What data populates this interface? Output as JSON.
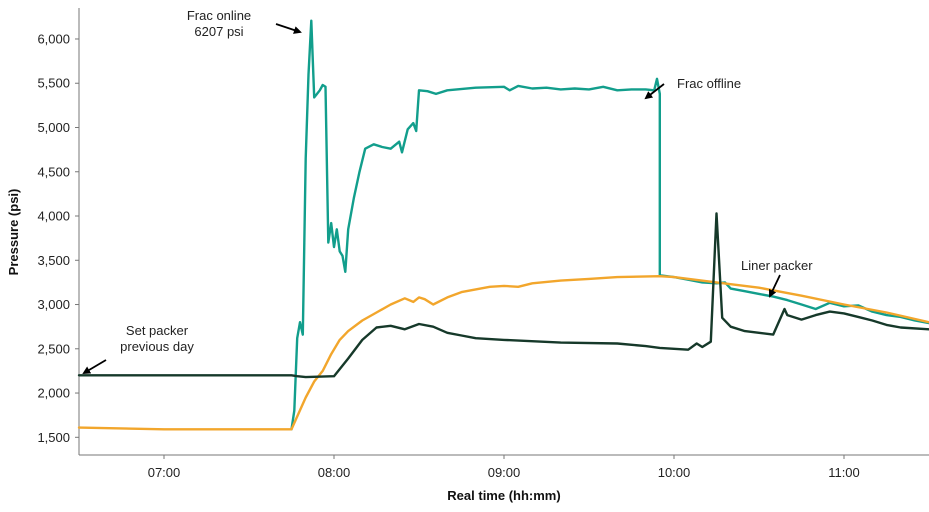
{
  "chart_data": {
    "type": "line",
    "title": "",
    "xlabel": "Real time (hh:mm)",
    "ylabel": "Pressure (psi)",
    "x_ticks": [
      "07:00",
      "08:00",
      "09:00",
      "10:00",
      "11:00"
    ],
    "y_ticks": [
      "1,500",
      "2,000",
      "2,500",
      "3,000",
      "3,500",
      "4,000",
      "4,500",
      "5,000",
      "5,500",
      "6,000"
    ],
    "xlim": [
      "06:30",
      "11:30"
    ],
    "ylim": [
      1300,
      6350
    ],
    "grid": false,
    "legend": "none",
    "series": [
      {
        "color": "#129e8c",
        "points": [
          [
            "07:45",
            1590
          ],
          [
            "07:46",
            1800
          ],
          [
            "07:47",
            2620
          ],
          [
            "07:48",
            2800
          ],
          [
            "07:49",
            2660
          ],
          [
            "07:50",
            4650
          ],
          [
            "07:51",
            5600
          ],
          [
            "07:52",
            6207
          ],
          [
            "07:53",
            5340
          ],
          [
            "07:54",
            5380
          ],
          [
            "07:55",
            5420
          ],
          [
            "07:56",
            5480
          ],
          [
            "07:57",
            5460
          ],
          [
            "07:58",
            3700
          ],
          [
            "07:59",
            3920
          ],
          [
            "08:00",
            3650
          ],
          [
            "08:01",
            3850
          ],
          [
            "08:02",
            3600
          ],
          [
            "08:03",
            3550
          ],
          [
            "08:04",
            3370
          ],
          [
            "08:05",
            3850
          ],
          [
            "08:07",
            4200
          ],
          [
            "08:09",
            4500
          ],
          [
            "08:11",
            4760
          ],
          [
            "08:14",
            4810
          ],
          [
            "08:17",
            4780
          ],
          [
            "08:20",
            4760
          ],
          [
            "08:23",
            4840
          ],
          [
            "08:24",
            4720
          ],
          [
            "08:26",
            4980
          ],
          [
            "08:28",
            5050
          ],
          [
            "08:29",
            4960
          ],
          [
            "08:30",
            5420
          ],
          [
            "08:33",
            5410
          ],
          [
            "08:36",
            5380
          ],
          [
            "08:40",
            5420
          ],
          [
            "08:50",
            5450
          ],
          [
            "09:00",
            5460
          ],
          [
            "09:02",
            5420
          ],
          [
            "09:05",
            5470
          ],
          [
            "09:10",
            5440
          ],
          [
            "09:15",
            5450
          ],
          [
            "09:20",
            5430
          ],
          [
            "09:25",
            5440
          ],
          [
            "09:30",
            5430
          ],
          [
            "09:35",
            5460
          ],
          [
            "09:40",
            5420
          ],
          [
            "09:45",
            5430
          ],
          [
            "09:50",
            5430
          ],
          [
            "09:53",
            5420
          ],
          [
            "09:54",
            5550
          ],
          [
            "09:55",
            5380
          ],
          [
            "09:55",
            3330
          ],
          [
            "10:00",
            3310
          ],
          [
            "10:05",
            3280
          ],
          [
            "10:10",
            3250
          ],
          [
            "10:15",
            3240
          ],
          [
            "10:18",
            3250
          ],
          [
            "10:20",
            3180
          ],
          [
            "10:25",
            3150
          ],
          [
            "10:30",
            3120
          ],
          [
            "10:35",
            3090
          ],
          [
            "10:40",
            3050
          ],
          [
            "10:45",
            3000
          ],
          [
            "10:50",
            2950
          ],
          [
            "10:55",
            3020
          ],
          [
            "11:00",
            2980
          ],
          [
            "11:05",
            2990
          ],
          [
            "11:10",
            2920
          ],
          [
            "11:15",
            2880
          ],
          [
            "11:20",
            2860
          ],
          [
            "11:25",
            2820
          ],
          [
            "11:30",
            2790
          ]
        ]
      },
      {
        "color": "#f2a62c",
        "points": [
          [
            "06:30",
            1610
          ],
          [
            "07:00",
            1590
          ],
          [
            "07:45",
            1590
          ],
          [
            "07:50",
            1950
          ],
          [
            "07:53",
            2130
          ],
          [
            "07:56",
            2250
          ],
          [
            "07:59",
            2440
          ],
          [
            "08:02",
            2600
          ],
          [
            "08:05",
            2700
          ],
          [
            "08:10",
            2820
          ],
          [
            "08:15",
            2910
          ],
          [
            "08:20",
            3000
          ],
          [
            "08:25",
            3070
          ],
          [
            "08:28",
            3030
          ],
          [
            "08:30",
            3080
          ],
          [
            "08:32",
            3060
          ],
          [
            "08:35",
            3000
          ],
          [
            "08:40",
            3080
          ],
          [
            "08:45",
            3140
          ],
          [
            "08:55",
            3200
          ],
          [
            "09:00",
            3210
          ],
          [
            "09:05",
            3200
          ],
          [
            "09:10",
            3240
          ],
          [
            "09:20",
            3270
          ],
          [
            "09:30",
            3290
          ],
          [
            "09:40",
            3310
          ],
          [
            "09:55",
            3320
          ],
          [
            "10:00",
            3310
          ],
          [
            "10:15",
            3250
          ],
          [
            "10:30",
            3190
          ],
          [
            "10:45",
            3100
          ],
          [
            "11:00",
            3000
          ],
          [
            "11:15",
            2910
          ],
          [
            "11:30",
            2800
          ]
        ]
      },
      {
        "color": "#16392a",
        "points": [
          [
            "06:30",
            2200
          ],
          [
            "07:00",
            2200
          ],
          [
            "07:45",
            2200
          ],
          [
            "07:47",
            2190
          ],
          [
            "07:50",
            2180
          ],
          [
            "08:00",
            2190
          ],
          [
            "08:05",
            2390
          ],
          [
            "08:10",
            2600
          ],
          [
            "08:15",
            2740
          ],
          [
            "08:20",
            2760
          ],
          [
            "08:25",
            2720
          ],
          [
            "08:30",
            2780
          ],
          [
            "08:35",
            2750
          ],
          [
            "08:40",
            2680
          ],
          [
            "08:45",
            2650
          ],
          [
            "08:50",
            2620
          ],
          [
            "09:00",
            2600
          ],
          [
            "09:20",
            2570
          ],
          [
            "09:40",
            2560
          ],
          [
            "09:50",
            2530
          ],
          [
            "09:55",
            2510
          ],
          [
            "10:00",
            2500
          ],
          [
            "10:05",
            2490
          ],
          [
            "10:08",
            2560
          ],
          [
            "10:10",
            2520
          ],
          [
            "10:13",
            2580
          ],
          [
            "10:15",
            4030
          ],
          [
            "10:17",
            2850
          ],
          [
            "10:20",
            2750
          ],
          [
            "10:25",
            2700
          ],
          [
            "10:30",
            2680
          ],
          [
            "10:35",
            2660
          ],
          [
            "10:39",
            2950
          ],
          [
            "10:40",
            2880
          ],
          [
            "10:45",
            2830
          ],
          [
            "10:50",
            2880
          ],
          [
            "10:55",
            2920
          ],
          [
            "11:00",
            2900
          ],
          [
            "11:05",
            2860
          ],
          [
            "11:10",
            2820
          ],
          [
            "11:15",
            2770
          ],
          [
            "11:20",
            2740
          ],
          [
            "11:30",
            2720
          ]
        ]
      }
    ],
    "annotations": [
      {
        "lines": [
          "Frac online",
          "6207 psi"
        ],
        "x": "07:52",
        "y": 6207
      },
      {
        "lines": [
          "Frac offline"
        ],
        "x": "09:55",
        "y": 5380
      },
      {
        "lines": [
          "Liner packer"
        ],
        "x": "10:39",
        "y": 3100
      },
      {
        "lines": [
          "Set packer",
          "previous day"
        ],
        "x": "06:30",
        "y": 2200
      }
    ]
  }
}
